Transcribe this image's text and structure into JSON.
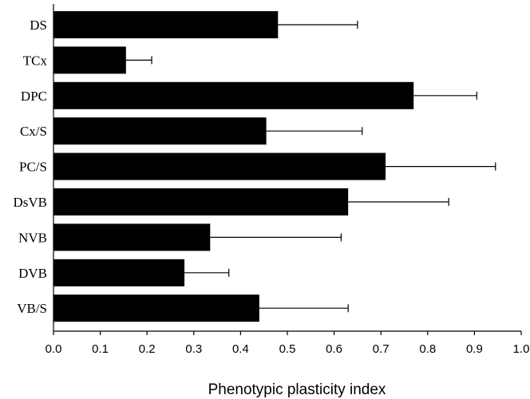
{
  "chart_data": {
    "type": "bar",
    "orientation": "horizontal",
    "title": "",
    "xlabel": "Phenotypic plasticity index",
    "ylabel": "",
    "xlim": [
      0.0,
      1.0
    ],
    "xticks": [
      "0.0",
      "0.1",
      "0.2",
      "0.3",
      "0.4",
      "0.5",
      "0.6",
      "0.7",
      "0.8",
      "0.9",
      "1.0"
    ],
    "categories": [
      "DS",
      "TCx",
      "DPC",
      "Cx/S",
      "PC/S",
      "DsVB",
      "NVB",
      "DVB",
      "VB/S"
    ],
    "values": [
      0.48,
      0.155,
      0.77,
      0.455,
      0.71,
      0.63,
      0.335,
      0.28,
      0.44
    ],
    "error_upper": [
      0.17,
      0.055,
      0.135,
      0.205,
      0.235,
      0.215,
      0.28,
      0.095,
      0.19
    ],
    "grid": false,
    "legend": "none",
    "bar_color": "#000000"
  }
}
